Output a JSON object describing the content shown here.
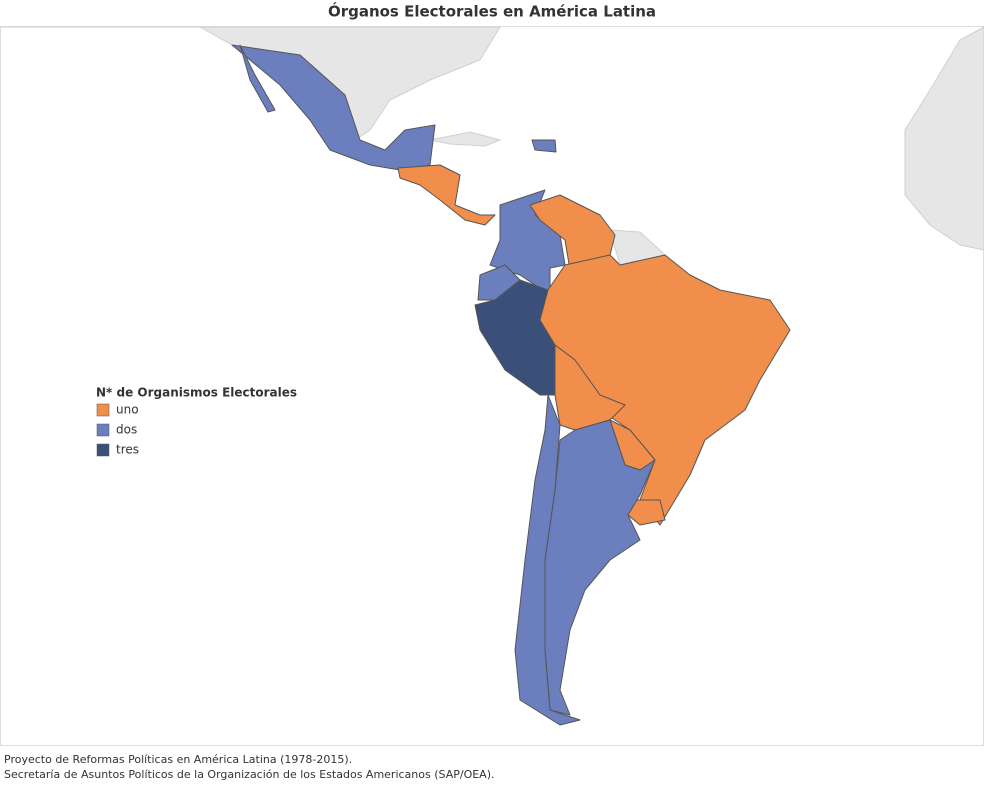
{
  "title": "Órganos Electorales en América Latina",
  "legend": {
    "title": "N* de Organismos Electorales",
    "items": [
      {
        "label": "uno",
        "color": "#f28e4b"
      },
      {
        "label": "dos",
        "color": "#6b7fbf"
      },
      {
        "label": "tres",
        "color": "#3b5078"
      }
    ]
  },
  "footer": [
    "Proyecto de Reformas Políticas en América Latina (1978-2015).",
    "Secretaría de Asuntos Políticos de la Organización de los Estados Americanos (SAP/OEA)."
  ]
}
